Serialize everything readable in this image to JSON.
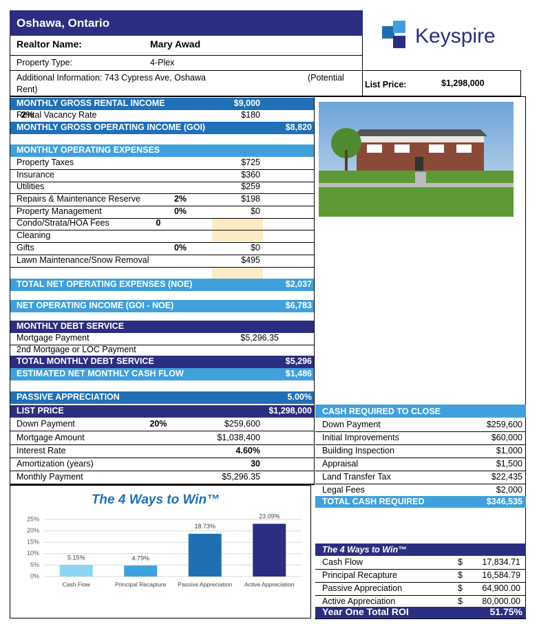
{
  "header": {
    "location": "Oshawa, Ontario",
    "realtor_label": "Realtor Name:",
    "realtor_name": "Mary Awad",
    "property_type_label": "Property Type:",
    "property_type": "4-Plex",
    "additional_info": "Additional Information:  743 Cypress Ave, Oshawa",
    "additional_note": [
      "(Potential",
      "Rent)"
    ],
    "list_price_label": "List Price:",
    "list_price": "$1,298,000",
    "logo": "Keyspire"
  },
  "left_rows": [
    {
      "label": "MONTHLY GROSS RENTAL INCOME",
      "amount": "$9,000"
    },
    {
      "label": "Rental Vacancy Rate",
      "rate": "2%",
      "amount": "$180"
    },
    {
      "label": "MONTHLY GROSS OPERATING INCOME (GOI)",
      "amount": "$8,820"
    },
    {
      "label": "MONTHLY OPERATING EXPENSES"
    },
    {
      "label": "Property Taxes",
      "amount": "$725"
    },
    {
      "label": "Insurance",
      "amount": "$360"
    },
    {
      "label": "Utilities",
      "amount": "$259"
    },
    {
      "label": "Repairs & Maintenance Reserve",
      "rate": "2%",
      "amount": "$198"
    },
    {
      "label": "Property Management",
      "rate": "0%",
      "amount": "$0"
    },
    {
      "label": "Condo/Strata/HOA Fees",
      "rate": "0"
    },
    {
      "label": "Cleaning"
    },
    {
      "label": "Gifts",
      "rate": "0%",
      "amount": "$0"
    },
    {
      "label": "Lawn Maintenance/Snow Removal",
      "amount": "$495"
    },
    {
      "label": "TOTAL NET OPERATING EXPENSES (NOE)",
      "amount": "$2,037"
    },
    {
      "label": "NET OPERATING INCOME (GOI - NOE)",
      "amount": "$6,783"
    },
    {
      "label": "MONTHLY DEBT SERVICE"
    },
    {
      "label": "Mortgage Payment",
      "amount": "$5,296.35"
    },
    {
      "label": "2nd Mortgage or LOC Payment"
    },
    {
      "label": "TOTAL MONTHLY DEBT SERVICE",
      "amount": "$5,296"
    },
    {
      "label": "ESTIMATED NET MONTHLY CASH FLOW",
      "amount": "$1,486"
    },
    {
      "label": "PASSIVE APPRECIATION",
      "amount": "5.00%"
    },
    {
      "label": "LIST PRICE",
      "amount": "$1,298,000"
    },
    {
      "label": "Down Payment",
      "rate": "20%",
      "amount": "$259,600"
    },
    {
      "label": "Mortgage Amount",
      "amount": "$1,038,400"
    },
    {
      "label": "Interest Rate",
      "amount": "4.60%"
    },
    {
      "label": "Amortization (years)",
      "amount": "30"
    },
    {
      "label": "Monthly Payment",
      "amount": "$5,296.35"
    }
  ],
  "cash_to_close": {
    "title": "CASH REQUIRED TO CLOSE",
    "rows": [
      [
        "Down Payment",
        "$259,600"
      ],
      [
        "Initial Improvements",
        "$60,000"
      ],
      [
        "Building Inspection",
        "$1,000"
      ],
      [
        "Appraisal",
        "$1,500"
      ],
      [
        "Land Transfer Tax",
        "$22,435"
      ],
      [
        "Legal Fees",
        "$2,000"
      ]
    ],
    "total": [
      "TOTAL CASH REQUIRED",
      "$346,535"
    ]
  },
  "ways_table": {
    "title": "The 4 Ways to Win™",
    "rows": [
      [
        "Cash Flow",
        "$",
        "17,834.71"
      ],
      [
        "Principal Recapture",
        "$",
        "16,584.79"
      ],
      [
        "Passive Appreciation",
        "$",
        "64,900.00"
      ],
      [
        "Active Appreciation",
        "$",
        "80,000.00"
      ]
    ],
    "total": [
      "Year One Total ROI",
      "51.75%"
    ]
  },
  "chart_data": {
    "type": "bar",
    "title": "The 4 Ways to Win™",
    "categories": [
      "Cash Flow",
      "Principal Recapture",
      "Passive Appreciation",
      "Active Appreciation"
    ],
    "values": [
      5.15,
      4.79,
      18.73,
      23.09
    ],
    "value_labels": [
      "5.15%",
      "4.79%",
      "18.73%",
      "23.09%"
    ],
    "colors": [
      "#8dd5f2",
      "#3fa0dc",
      "#1f6fb0",
      "#2b2e80"
    ],
    "ylim": [
      0,
      25
    ],
    "yticks": [
      {
        "value": 0,
        "label": "0%"
      },
      {
        "value": 5,
        "label": "5%"
      },
      {
        "value": 10,
        "label": "10%"
      },
      {
        "value": 15,
        "label": "15%"
      },
      {
        "value": 20,
        "label": "20%"
      },
      {
        "value": 25,
        "label": "25%"
      }
    ],
    "grid": true
  }
}
